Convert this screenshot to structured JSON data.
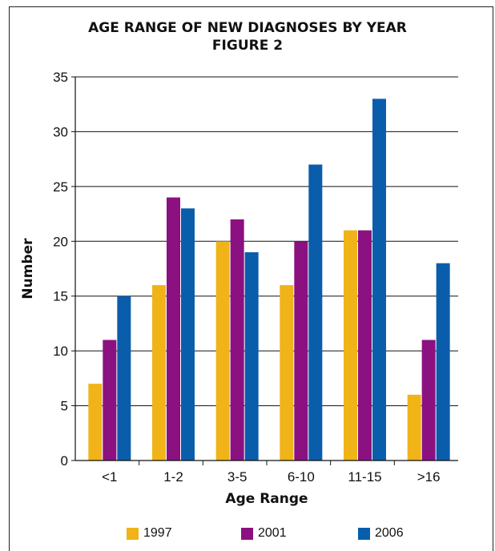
{
  "title_lines": [
    "AGE RANGE OF NEW DIAGNOSES BY YEAR",
    "FIGURE 2"
  ],
  "colors": {
    "1997": "#f0b318",
    "2001": "#8b1180",
    "2006": "#0a5dab"
  },
  "chart_data": {
    "type": "bar",
    "title": "AGE RANGE OF NEW DIAGNOSES BY YEAR",
    "subtitle": "FIGURE 2",
    "xlabel": "Age Range",
    "ylabel": "Number",
    "categories": [
      "<1",
      "1-2",
      "3-5",
      "6-10",
      "11-15",
      ">16"
    ],
    "series": [
      {
        "name": "1997",
        "values": [
          7,
          16,
          20,
          16,
          21,
          6
        ]
      },
      {
        "name": "2001",
        "values": [
          11,
          24,
          22,
          20,
          21,
          11
        ]
      },
      {
        "name": "2006",
        "values": [
          15,
          23,
          19,
          27,
          33,
          18
        ]
      }
    ],
    "ylim": [
      0,
      35
    ],
    "yticks": [
      0,
      5,
      10,
      15,
      20,
      25,
      30,
      35
    ],
    "grid": true,
    "legend": "bottom"
  }
}
